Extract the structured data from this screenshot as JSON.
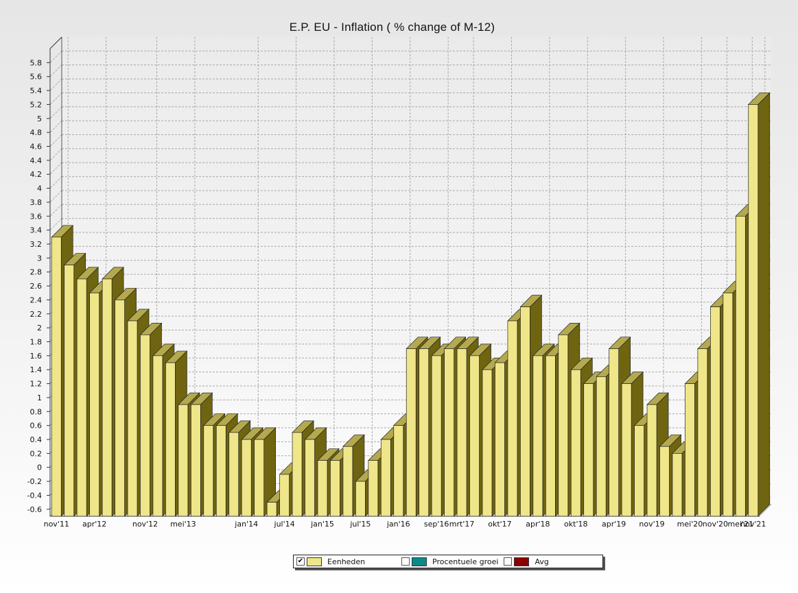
{
  "title": "E.P. EU - Inflation ( % change of M-12)",
  "colors": {
    "bar_front": "#efe68a",
    "bar_top": "#b4a94e",
    "bar_side": "#6f6410",
    "grid": "#a9a9a9"
  },
  "chart_data": {
    "type": "bar",
    "title": "E.P. EU - Inflation ( % change of M-12)",
    "ylim": [
      -0.7,
      6
    ],
    "yticks": [
      -0.6,
      -0.4,
      -0.2,
      0,
      0.2,
      0.4,
      0.6,
      0.8,
      1,
      1.2,
      1.4,
      1.6,
      1.8,
      2,
      2.2,
      2.4,
      2.6,
      2.8,
      3,
      3.2,
      3.4,
      3.6,
      3.8,
      4,
      4.2,
      4.4,
      4.6,
      4.8,
      5,
      5.2,
      5.4,
      5.6,
      5.8
    ],
    "grid": true,
    "legend_position": "bottom",
    "x_tick_labels": [
      "nov'11",
      "apr'12",
      "nov'12",
      "mei'13",
      "jan'14",
      "jul'14",
      "jan'15",
      "jul'15",
      "jan'16",
      "sep'16",
      "mrt'17",
      "okt'17",
      "apr'18",
      "okt'18",
      "apr'19",
      "nov'19",
      "mei'20",
      "nov'20",
      "mei'21",
      "nov'21"
    ],
    "series": [
      {
        "name": "Eenheden",
        "values": [
          3.3,
          2.9,
          2.7,
          2.5,
          2.7,
          2.4,
          2.1,
          1.9,
          1.6,
          1.5,
          0.9,
          0.9,
          0.6,
          0.6,
          0.5,
          0.4,
          0.4,
          -0.5,
          -0.1,
          0.5,
          0.4,
          0.1,
          0.1,
          0.3,
          -0.2,
          0.1,
          0.4,
          0.6,
          1.7,
          1.7,
          1.6,
          1.7,
          1.7,
          1.6,
          1.4,
          1.5,
          2.1,
          2.3,
          1.6,
          1.6,
          1.9,
          1.4,
          1.2,
          1.3,
          1.7,
          1.2,
          0.6,
          0.9,
          0.3,
          0.2,
          1.2,
          1.7,
          2.3,
          2.5,
          3.6,
          5.2
        ]
      }
    ]
  },
  "legend": {
    "items": [
      {
        "label": "Eenheden",
        "checked": true,
        "color": "#efe68a"
      },
      {
        "label": "Procentuele groei",
        "checked": false,
        "color": "#0b8a8a"
      },
      {
        "label": "Avg",
        "checked": false,
        "color": "#8b0000"
      }
    ]
  }
}
